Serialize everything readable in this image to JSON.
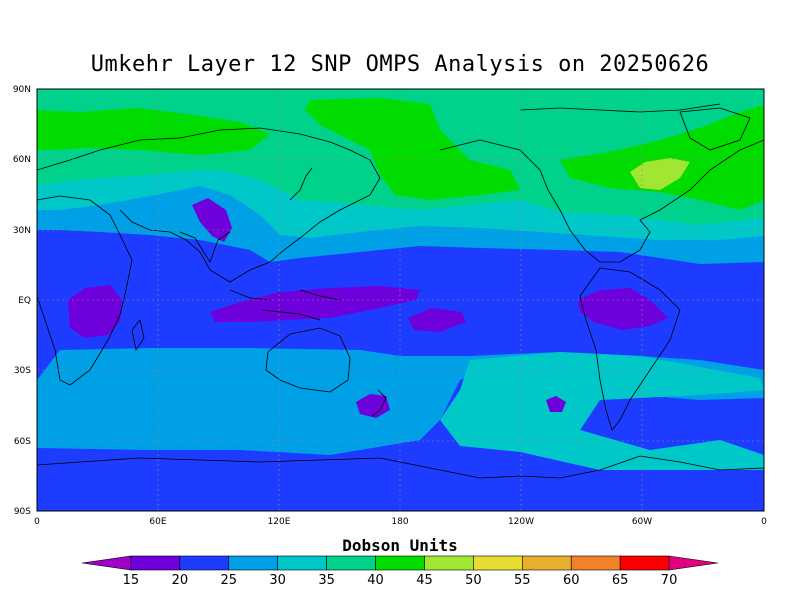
{
  "title": "Umkehr Layer 12 SNP OMPS Analysis on 20250626",
  "lat_labels": [
    "90N",
    "60N",
    "30N",
    "EQ",
    "30S",
    "60S",
    "90S"
  ],
  "lon_labels": [
    "0",
    "60E",
    "120E",
    "180",
    "120W",
    "60W",
    "0"
  ],
  "colorbar": {
    "title": "Dobson Units",
    "levels": [
      "15",
      "20",
      "25",
      "30",
      "35",
      "40",
      "45",
      "50",
      "55",
      "60",
      "65",
      "70"
    ],
    "colors": [
      "#a000c8",
      "#6e00dc",
      "#1e3cff",
      "#00a0e6",
      "#00c8c8",
      "#00d28c",
      "#00dc00",
      "#a0e632",
      "#e6dc32",
      "#e6af2d",
      "#f08228",
      "#fa0000",
      "#e00080"
    ]
  },
  "field_colors": {
    "c20": "#6e00dc",
    "c25": "#1e3cff",
    "c30": "#00a0e6",
    "c35": "#00c8c8",
    "c40": "#00d28c",
    "c45": "#00dc00",
    "c50": "#a0e632"
  }
}
